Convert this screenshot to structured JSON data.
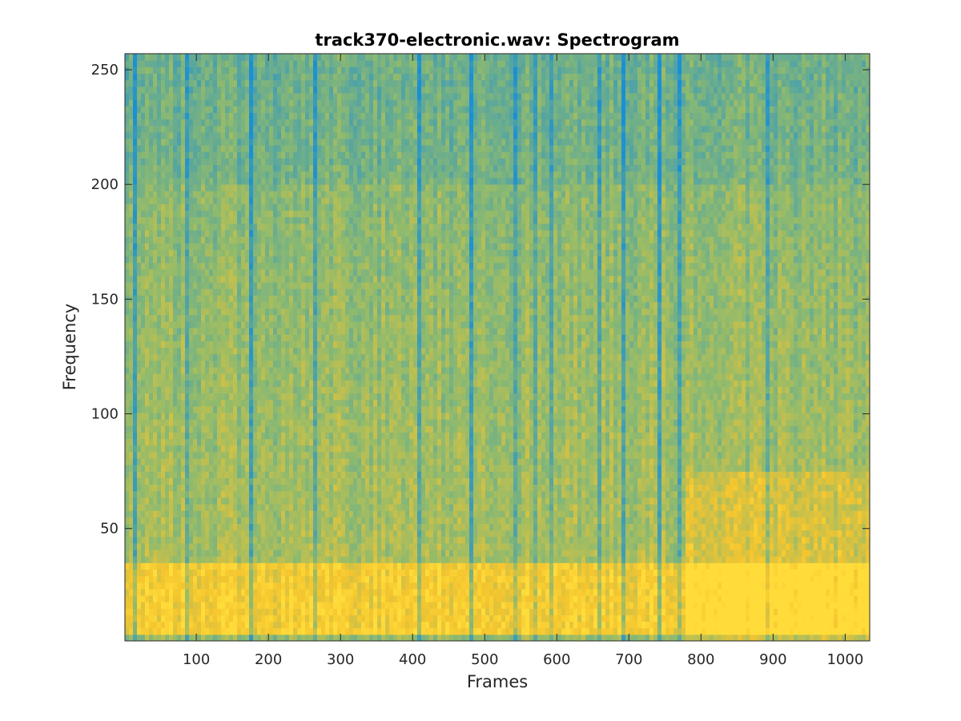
{
  "chart_data": {
    "type": "heatmap",
    "title": "track370-electronic.wav: Spectrogram",
    "xlabel": "Frames",
    "ylabel": "Frequency",
    "xlim": [
      1,
      1034
    ],
    "ylim": [
      1,
      257
    ],
    "x_ticks": [
      100,
      200,
      300,
      400,
      500,
      600,
      700,
      800,
      900,
      1000
    ],
    "y_ticks": [
      50,
      100,
      150,
      200,
      250
    ],
    "colormap": "parula",
    "grid": false,
    "legend": "none",
    "description_of_values": {
      "high_energy_band_frequency": [
        5,
        35
      ],
      "high_energy_region_after_frame": 780,
      "upper_band_frequency_range": [
        200,
        257
      ]
    }
  },
  "colors": {
    "low": "#1a8fd6",
    "mid": "#8fba6e",
    "high": "#f4c52f",
    "peak": "#ffdc3a",
    "axis": "#262626",
    "background": "#ffffff"
  }
}
